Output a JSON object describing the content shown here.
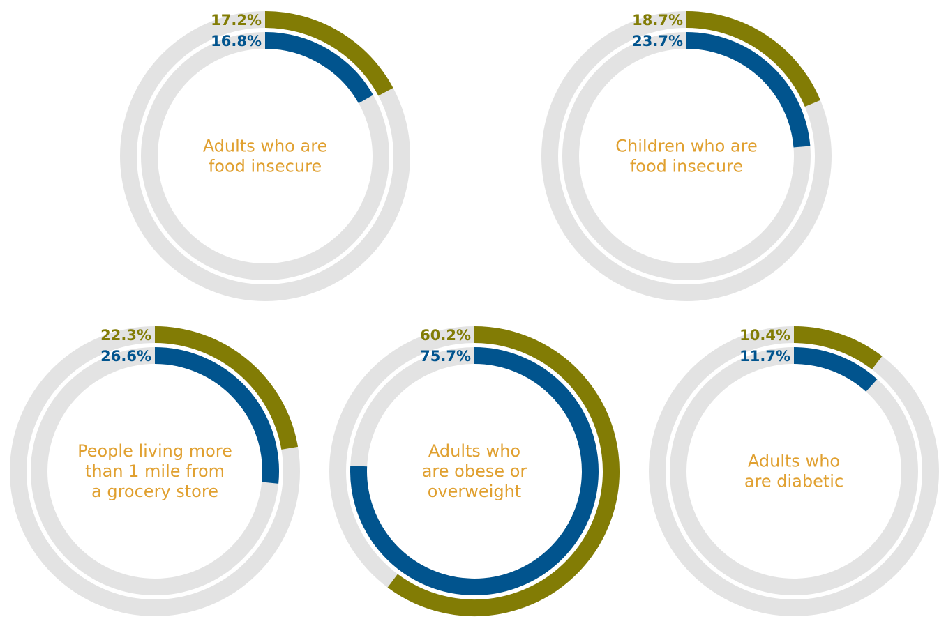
{
  "colors": {
    "track": "#E3E3E3",
    "series_a": "#827C05",
    "series_b": "#01548E",
    "label": "#E0A030"
  },
  "chart_data": [
    {
      "type": "donut",
      "title": [
        "Adults who are",
        "food insecure"
      ],
      "series": [
        {
          "value": 17.2,
          "label": "17.2%"
        },
        {
          "value": 16.8,
          "label": "16.8%"
        }
      ]
    },
    {
      "type": "donut",
      "title": [
        "Children who are",
        "food insecure"
      ],
      "series": [
        {
          "value": 18.7,
          "label": "18.7%"
        },
        {
          "value": 23.7,
          "label": "23.7%"
        }
      ]
    },
    {
      "type": "donut",
      "title": [
        "People living more",
        "than 1 mile from",
        "a grocery store"
      ],
      "series": [
        {
          "value": 22.3,
          "label": "22.3%"
        },
        {
          "value": 26.6,
          "label": "26.6%"
        }
      ]
    },
    {
      "type": "donut",
      "title": [
        "Adults who",
        "are obese or",
        "overweight"
      ],
      "series": [
        {
          "value": 60.2,
          "label": "60.2%"
        },
        {
          "value": 75.7,
          "label": "75.7%"
        }
      ]
    },
    {
      "type": "donut",
      "title": [
        "Adults who",
        "are diabetic"
      ],
      "series": [
        {
          "value": 10.4,
          "label": "10.4%"
        },
        {
          "value": 11.7,
          "label": "11.7%"
        }
      ]
    }
  ]
}
